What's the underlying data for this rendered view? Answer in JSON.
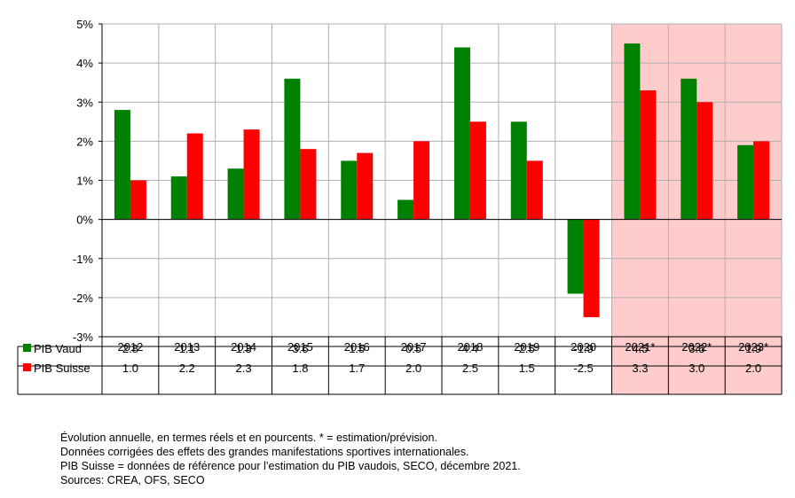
{
  "chart_data": {
    "type": "bar",
    "categories": [
      "2012",
      "2013",
      "2014",
      "2015",
      "2016",
      "2017",
      "2018",
      "2019",
      "2020",
      "2021*",
      "2022*",
      "2023*"
    ],
    "highlighted_categories": [
      "2021*",
      "2022*",
      "2023*"
    ],
    "ylim": [
      -3,
      5
    ],
    "y_ticks": [
      5,
      4,
      3,
      2,
      1,
      0,
      -1,
      -2,
      -3
    ],
    "y_tick_labels": [
      "5%",
      "4%",
      "3%",
      "2%",
      "1%",
      "0%",
      "-1%",
      "-2%",
      "-3%"
    ],
    "grid": true,
    "series": [
      {
        "name": "PIB Vaud",
        "color": "#008000",
        "values": [
          2.8,
          1.1,
          1.3,
          3.6,
          1.5,
          0.5,
          4.4,
          2.5,
          -1.9,
          4.5,
          3.6,
          1.9
        ],
        "labels": [
          "2.8",
          "1.1",
          "1.3",
          "3.6",
          "1.5",
          "0.5",
          "4.4",
          "2.5",
          "-1.9",
          "4.5",
          "3.6",
          "1.9"
        ]
      },
      {
        "name": "PIB Suisse",
        "color": "#ff0000",
        "values": [
          1.0,
          2.2,
          2.3,
          1.8,
          1.7,
          2.0,
          2.5,
          1.5,
          -2.5,
          3.3,
          3.0,
          2.0
        ],
        "labels": [
          "1.0",
          "2.2",
          "2.3",
          "1.8",
          "1.7",
          "2.0",
          "2.5",
          "1.5",
          "-2.5",
          "3.3",
          "3.0",
          "2.0"
        ]
      }
    ],
    "legend_placement": "data-table-left",
    "highlight_color": "#ffcccc"
  },
  "notes": [
    "Évolution annuelle, en termes réels et en pourcents. * = estimation/prévision.",
    "Données corrigées des effets des grandes manifestations sportives internationales.",
    "PIB Suisse = données de référence pour l’estimation du PIB vaudois, SECO, décembre 2021.",
    "Sources: CREA, OFS, SECO"
  ]
}
